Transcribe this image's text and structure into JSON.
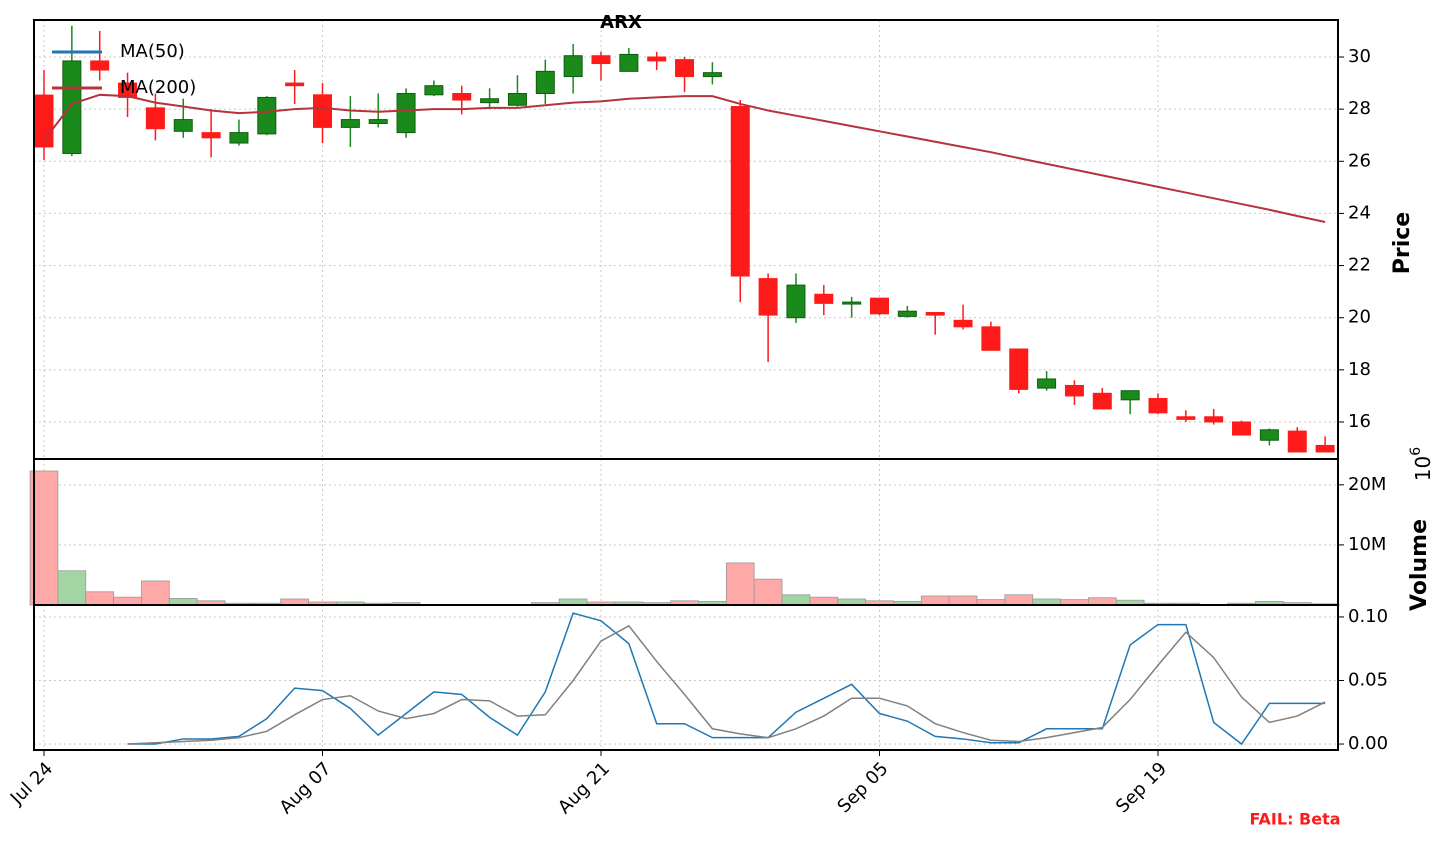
{
  "chart_data": [
    {
      "type": "candlestick",
      "title": "ARX",
      "y_label": "Price",
      "ylim": [
        14.58,
        31.42
      ],
      "yticks": [
        16,
        18,
        20,
        22,
        24,
        26,
        28,
        30
      ],
      "grid": true,
      "legend": "upper left",
      "up_color": "#1a8a1a",
      "down_color": "#ff1a1a",
      "open": [
        28.54,
        26.3,
        29.85,
        29.0,
        28.05,
        27.15,
        27.1,
        26.7,
        27.05,
        29.0,
        28.55,
        27.3,
        27.45,
        27.1,
        28.55,
        28.6,
        28.25,
        28.15,
        28.6,
        29.25,
        30.05,
        29.45,
        30.0,
        29.9,
        29.25,
        28.1,
        21.5,
        20.0,
        20.9,
        20.55,
        20.75,
        20.05,
        20.2,
        19.9,
        19.65,
        18.8,
        17.3,
        17.4,
        17.1,
        16.85,
        16.9,
        16.2,
        16.2,
        16.0,
        15.3,
        15.65,
        15.1
      ],
      "high": [
        29.5,
        31.2,
        31.0,
        29.4,
        28.6,
        28.4,
        28.0,
        27.6,
        28.5,
        29.5,
        29.0,
        28.5,
        28.6,
        28.8,
        29.1,
        28.9,
        28.8,
        29.3,
        29.9,
        30.5,
        30.2,
        30.35,
        30.2,
        30.0,
        29.8,
        28.35,
        21.7,
        21.7,
        21.25,
        20.8,
        20.75,
        20.45,
        20.2,
        20.5,
        19.85,
        18.8,
        17.95,
        17.6,
        17.3,
        17.2,
        17.1,
        16.45,
        16.5,
        16.05,
        15.75,
        15.8,
        15.45
      ],
      "low": [
        26.05,
        26.2,
        29.1,
        27.7,
        26.8,
        26.9,
        26.15,
        26.6,
        27.0,
        28.2,
        26.7,
        26.55,
        27.3,
        26.9,
        28.5,
        27.8,
        28.0,
        28.1,
        28.2,
        28.6,
        29.1,
        29.45,
        29.5,
        28.65,
        28.95,
        20.6,
        18.3,
        19.8,
        20.1,
        20.0,
        20.1,
        20.0,
        19.35,
        19.55,
        18.75,
        17.1,
        17.2,
        16.65,
        16.5,
        16.3,
        16.3,
        16.0,
        15.9,
        15.5,
        15.1,
        14.85,
        14.85
      ],
      "close": [
        26.55,
        29.85,
        29.5,
        28.45,
        27.25,
        27.6,
        26.9,
        27.1,
        28.45,
        28.9,
        27.3,
        27.6,
        27.6,
        28.6,
        28.9,
        28.35,
        28.4,
        28.6,
        29.45,
        30.05,
        29.75,
        30.1,
        29.85,
        29.25,
        29.4,
        21.6,
        20.1,
        21.25,
        20.55,
        20.6,
        20.15,
        20.25,
        20.1,
        19.65,
        18.75,
        17.25,
        17.65,
        17.0,
        16.5,
        17.2,
        16.35,
        16.1,
        16.0,
        15.5,
        15.7,
        14.85,
        14.85
      ],
      "series": [
        {
          "name": "MA(50)",
          "color": "#1f77b4",
          "values": [
            null,
            null,
            null,
            null,
            null,
            null,
            null,
            null,
            null,
            null,
            null,
            null,
            null,
            null,
            null,
            null,
            null,
            null,
            null,
            null,
            null,
            null,
            null,
            null,
            null,
            null,
            null,
            null,
            null,
            null,
            null,
            null,
            null,
            null,
            null,
            null,
            null,
            null,
            null,
            null,
            null,
            null,
            null,
            null,
            null,
            null,
            null
          ]
        },
        {
          "name": "MA(200)",
          "color": "#b5333b",
          "values": [
            26.8,
            28.2,
            28.55,
            28.5,
            28.25,
            28.1,
            27.95,
            27.85,
            27.9,
            28.0,
            28.05,
            27.95,
            27.9,
            27.95,
            28.0,
            28.0,
            28.05,
            28.05,
            28.15,
            28.25,
            28.3,
            28.4,
            28.45,
            28.5,
            28.5,
            28.2,
            27.95,
            27.75,
            27.55,
            27.35,
            27.15,
            26.95,
            26.75,
            26.55,
            26.35,
            26.12,
            25.9,
            25.68,
            25.46,
            25.24,
            25.02,
            24.8,
            24.58,
            24.36,
            24.14,
            23.9,
            23.67
          ]
        }
      ]
    },
    {
      "type": "bar",
      "y_label": "Volume",
      "y_offset": {
        "base": "10",
        "exponent": "6"
      },
      "ylim": [
        0,
        24300000
      ],
      "yticks": [
        {
          "value": 10000000,
          "label": "10M"
        },
        {
          "value": 20000000,
          "label": "20M"
        }
      ],
      "grid": true,
      "up_color": "#a3d4a3",
      "down_color": "#ffa8a8",
      "edge_color": "#9a9a9a",
      "values": [
        22300000,
        5700000,
        2200000,
        1300000,
        4000000,
        1100000,
        700000,
        300000,
        300000,
        1000000,
        500000,
        500000,
        300000,
        400000,
        100000,
        100000,
        100000,
        100000,
        400000,
        1000000,
        500000,
        500000,
        400000,
        700000,
        600000,
        7000000,
        4300000,
        1700000,
        1300000,
        1000000,
        700000,
        600000,
        1500000,
        1500000,
        900000,
        1700000,
        1000000,
        900000,
        1200000,
        800000,
        300000,
        300000,
        100000,
        300000,
        600000,
        400000,
        200000
      ]
    },
    {
      "type": "line",
      "annotation": "FAIL: Beta",
      "categories": [
        "Jul 24",
        null,
        null,
        null,
        null,
        null,
        null,
        null,
        null,
        null,
        "Aug 07",
        null,
        null,
        null,
        null,
        null,
        null,
        null,
        null,
        null,
        "Aug 21",
        null,
        null,
        null,
        null,
        null,
        null,
        null,
        null,
        null,
        "Sep 05",
        null,
        null,
        null,
        null,
        null,
        null,
        null,
        null,
        null,
        "Sep 19",
        null,
        null,
        null,
        null,
        null,
        null
      ],
      "ylim": [
        -0.0047,
        0.1094
      ],
      "yticks": [
        {
          "value": 0,
          "label": "0.00"
        },
        {
          "value": 0.05,
          "label": "0.05"
        },
        {
          "value": 0.1,
          "label": "0.10"
        }
      ],
      "grid": true,
      "series": [
        {
          "color": "#1f77b4",
          "values": [
            null,
            null,
            null,
            0.0,
            0.0,
            0.004,
            0.004,
            0.006,
            0.02,
            0.044,
            0.042,
            0.028,
            0.007,
            0.024,
            0.041,
            0.039,
            0.021,
            0.007,
            0.041,
            0.103,
            0.097,
            0.079,
            0.016,
            0.016,
            0.005,
            0.005,
            0.005,
            0.025,
            0.036,
            0.047,
            0.024,
            0.018,
            0.006,
            0.004,
            0.001,
            0.001,
            0.012,
            0.012,
            0.012,
            0.078,
            0.094,
            0.094,
            0.017,
            0.0,
            0.032,
            0.032,
            0.032
          ]
        },
        {
          "color": "#808080",
          "values": [
            null,
            null,
            null,
            0.0,
            0.001,
            0.002,
            0.003,
            0.005,
            0.01,
            0.023,
            0.035,
            0.038,
            0.026,
            0.02,
            0.024,
            0.035,
            0.034,
            0.022,
            0.023,
            0.05,
            0.081,
            0.093,
            0.065,
            0.039,
            0.012,
            0.008,
            0.005,
            0.012,
            0.022,
            0.036,
            0.036,
            0.03,
            0.016,
            0.009,
            0.003,
            0.002,
            0.005,
            0.009,
            0.013,
            0.035,
            0.062,
            0.088,
            0.068,
            0.037,
            0.017,
            0.022,
            0.033
          ]
        }
      ]
    }
  ]
}
